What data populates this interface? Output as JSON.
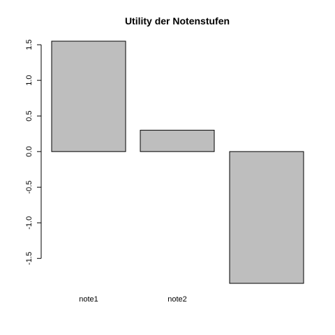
{
  "chart_data": {
    "type": "bar",
    "title": "Utility der Notenstufen",
    "xlabel": "",
    "ylabel": "",
    "categories": [
      "note1",
      "note2",
      ""
    ],
    "values": [
      1.55,
      0.3,
      -1.85
    ],
    "ylim": [
      -1.85,
      1.55
    ],
    "y_ticks": [
      -1.5,
      -1.0,
      -0.5,
      0.0,
      0.5,
      1.0,
      1.5
    ],
    "y_tick_labels": [
      "-1.5",
      "-1.0",
      "-0.5",
      "0.0",
      "0.5",
      "1.0",
      "1.5"
    ],
    "grid": false,
    "legend": "none",
    "bar_fill": "#bebebe",
    "bar_stroke": "#000000"
  }
}
